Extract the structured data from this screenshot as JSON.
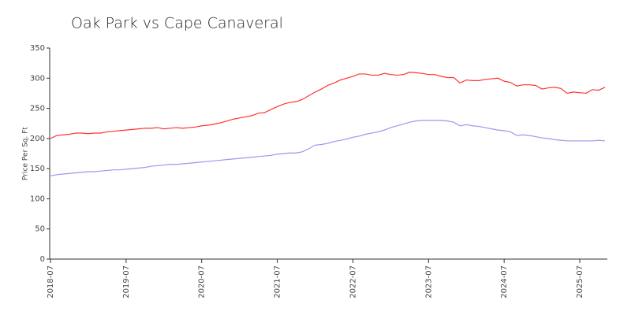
{
  "chart_data": {
    "type": "line",
    "title": "Oak Park vs Cape Canaveral",
    "y_label": "Price Per Sq. Ft",
    "x": [
      "2018-07",
      "2018-08",
      "2018-09",
      "2018-10",
      "2018-11",
      "2018-12",
      "2019-01",
      "2019-02",
      "2019-03",
      "2019-04",
      "2019-05",
      "2019-06",
      "2019-07",
      "2019-08",
      "2019-09",
      "2019-10",
      "2019-11",
      "2019-12",
      "2020-01",
      "2020-02",
      "2020-03",
      "2020-04",
      "2020-05",
      "2020-06",
      "2020-07",
      "2020-08",
      "2020-09",
      "2020-10",
      "2020-11",
      "2020-12",
      "2021-01",
      "2021-02",
      "2021-03",
      "2021-04",
      "2021-05",
      "2021-06",
      "2021-07",
      "2021-08",
      "2021-09",
      "2021-10",
      "2021-11",
      "2021-12",
      "2022-01",
      "2022-02",
      "2022-03",
      "2022-04",
      "2022-05",
      "2022-06",
      "2022-07",
      "2022-08",
      "2022-09",
      "2022-10",
      "2022-11",
      "2022-12",
      "2023-01",
      "2023-02",
      "2023-03",
      "2023-04",
      "2023-05",
      "2023-06",
      "2023-07",
      "2023-08",
      "2023-09",
      "2023-10",
      "2023-11",
      "2023-12",
      "2024-01",
      "2024-02",
      "2024-03",
      "2024-04",
      "2024-05",
      "2024-06",
      "2024-07",
      "2024-08",
      "2024-09",
      "2024-10",
      "2024-11",
      "2024-12",
      "2025-01",
      "2025-02",
      "2025-03",
      "2025-04",
      "2025-05",
      "2025-06",
      "2025-07",
      "2025-08",
      "2025-09",
      "2025-10",
      "2025-11"
    ],
    "xticks": [
      "2018-07",
      "2019-07",
      "2020-07",
      "2021-07",
      "2022-07",
      "2023-07",
      "2024-07",
      "2025-07"
    ],
    "ylim": [
      0,
      350
    ],
    "yticks": [
      0,
      50,
      100,
      150,
      200,
      250,
      300,
      350
    ],
    "series": [
      {
        "color": "#ff3333",
        "values": [
          200,
          205,
          206,
          207,
          209,
          209,
          208,
          209,
          209,
          211,
          212,
          213,
          214,
          215,
          216,
          217,
          217,
          218,
          216,
          217,
          218,
          217,
          218,
          219,
          221,
          222,
          224,
          226,
          229,
          232,
          234,
          236,
          238,
          242,
          243,
          248,
          253,
          257,
          260,
          261,
          265,
          271,
          277,
          282,
          288,
          292,
          297,
          300,
          303,
          307,
          307,
          305,
          305,
          308,
          306,
          305,
          306,
          310,
          309,
          308,
          306,
          306,
          303,
          301,
          301,
          292,
          297,
          296,
          296,
          298,
          299,
          300,
          295,
          293,
          287,
          289,
          289,
          288,
          282,
          284,
          285,
          283,
          275,
          277,
          276,
          275,
          281,
          280,
          285
        ]
      },
      {
        "color": "#9999ee",
        "values": [
          138,
          140,
          141,
          142,
          143,
          144,
          145,
          145,
          146,
          147,
          148,
          148,
          149,
          150,
          151,
          152,
          154,
          155,
          156,
          157,
          157,
          158,
          159,
          160,
          161,
          162,
          163,
          164,
          165,
          166,
          167,
          168,
          169,
          170,
          171,
          172,
          174,
          175,
          176,
          176,
          178,
          183,
          189,
          190,
          192,
          195,
          197,
          199,
          202,
          204,
          207,
          209,
          211,
          214,
          218,
          221,
          224,
          227,
          229,
          230,
          230,
          230,
          230,
          229,
          227,
          221,
          223,
          221,
          220,
          218,
          216,
          214,
          213,
          211,
          205,
          206,
          205,
          203,
          201,
          200,
          198,
          197,
          196,
          196,
          196,
          196,
          196,
          197,
          196
        ]
      }
    ]
  }
}
